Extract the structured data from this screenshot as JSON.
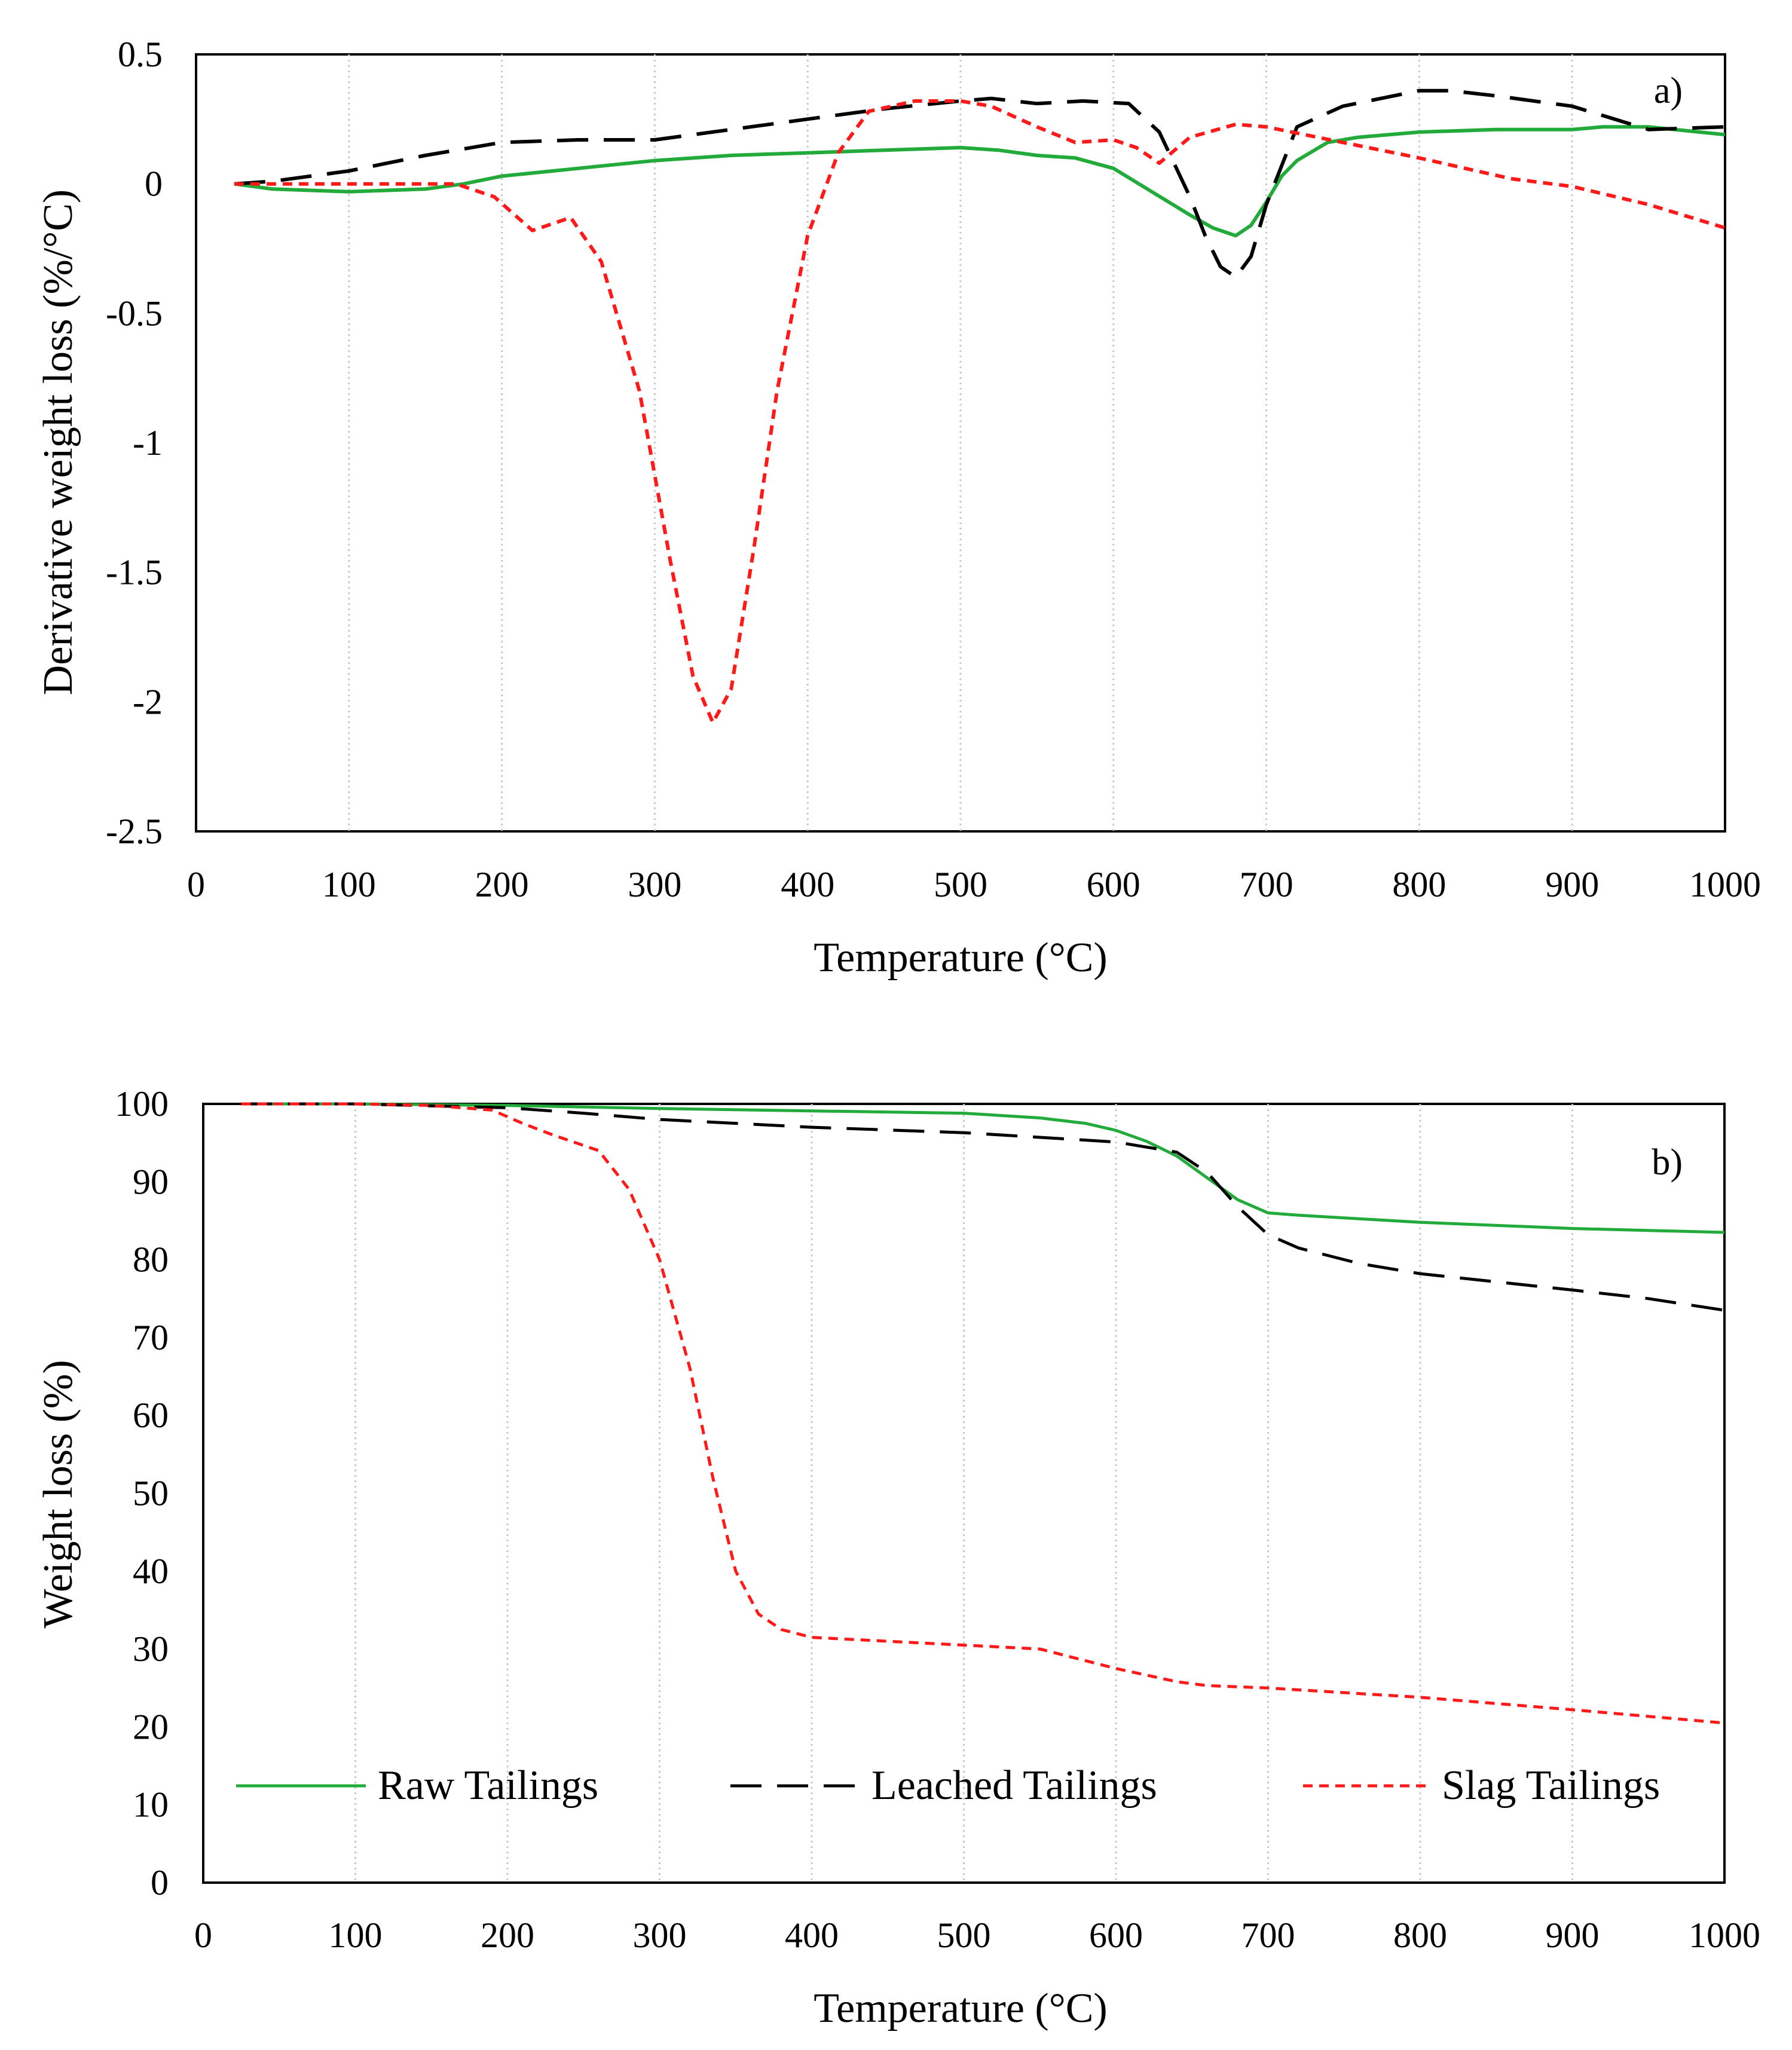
{
  "figure": {
    "legend": [
      {
        "name": "Raw Tailings",
        "color": "#22aa3a",
        "dash": "solid"
      },
      {
        "name": "Leached Tailings",
        "color": "#000000",
        "dash": "longdash"
      },
      {
        "name": "Slag Tailings",
        "color": "#ff1a1a",
        "dash": "shortdash"
      }
    ]
  },
  "chart_data": [
    {
      "type": "line",
      "panel_label": "a)",
      "title": "",
      "xlabel": "Temperature (°C)",
      "ylabel": "Derivative weight loss (%/°C)",
      "xlim": [
        0,
        1000
      ],
      "ylim": [
        -2.5,
        0.5
      ],
      "xticks": [
        0,
        100,
        200,
        300,
        400,
        500,
        600,
        700,
        800,
        900,
        1000
      ],
      "xtick_labels": [
        "0",
        "100",
        "200",
        "300",
        "400",
        "500",
        "600",
        "700",
        "800",
        "900",
        "1000"
      ],
      "yticks": [
        0.5,
        0,
        -0.5,
        -1,
        -1.5,
        -2,
        -2.5
      ],
      "ytick_labels": [
        "0.5",
        "0",
        "-0.5",
        "-1",
        "-1.5",
        "-2",
        "-2.5"
      ],
      "grid": "vertical-dotted",
      "series": [
        {
          "name": "Raw Tailings",
          "x": [
            25,
            50,
            100,
            150,
            175,
            200,
            250,
            300,
            350,
            400,
            450,
            500,
            525,
            550,
            575,
            600,
            625,
            650,
            665,
            680,
            690,
            700,
            710,
            720,
            740,
            760,
            800,
            850,
            900,
            920,
            950,
            1000
          ],
          "y": [
            0,
            -0.02,
            -0.03,
            -0.02,
            0,
            0.03,
            0.06,
            0.09,
            0.11,
            0.12,
            0.13,
            0.14,
            0.13,
            0.11,
            0.1,
            0.06,
            -0.03,
            -0.12,
            -0.17,
            -0.2,
            -0.16,
            -0.07,
            0.03,
            0.09,
            0.16,
            0.18,
            0.2,
            0.21,
            0.21,
            0.22,
            0.22,
            0.19
          ]
        },
        {
          "name": "Leached Tailings",
          "x": [
            25,
            50,
            100,
            150,
            200,
            250,
            300,
            350,
            400,
            450,
            500,
            520,
            550,
            580,
            610,
            630,
            650,
            660,
            670,
            680,
            690,
            700,
            720,
            750,
            800,
            820,
            850,
            900,
            950,
            1000
          ],
          "y": [
            0,
            0.01,
            0.05,
            0.11,
            0.16,
            0.17,
            0.17,
            0.21,
            0.25,
            0.29,
            0.32,
            0.33,
            0.31,
            0.32,
            0.31,
            0.2,
            -0.05,
            -0.2,
            -0.32,
            -0.36,
            -0.28,
            -0.08,
            0.22,
            0.3,
            0.36,
            0.36,
            0.34,
            0.3,
            0.21,
            0.22
          ]
        },
        {
          "name": "Slag Tailings",
          "x": [
            25,
            100,
            170,
            195,
            220,
            245,
            265,
            290,
            310,
            325,
            338,
            350,
            365,
            380,
            400,
            420,
            440,
            470,
            500,
            520,
            550,
            575,
            600,
            615,
            630,
            650,
            680,
            700,
            750,
            800,
            860,
            900,
            950,
            1000
          ],
          "y": [
            0,
            0,
            0,
            -0.05,
            -0.18,
            -0.13,
            -0.3,
            -0.8,
            -1.45,
            -1.9,
            -2.08,
            -1.95,
            -1.4,
            -0.8,
            -0.2,
            0.12,
            0.28,
            0.32,
            0.32,
            0.3,
            0.22,
            0.16,
            0.17,
            0.14,
            0.08,
            0.18,
            0.23,
            0.22,
            0.16,
            0.1,
            0.02,
            -0.01,
            -0.08,
            -0.17
          ]
        }
      ]
    },
    {
      "type": "line",
      "panel_label": "b)",
      "title": "",
      "xlabel": "Temperature (°C)",
      "ylabel": "Weight loss (%)",
      "xlim": [
        0,
        1000
      ],
      "ylim": [
        0,
        100
      ],
      "xticks": [
        0,
        100,
        200,
        300,
        400,
        500,
        600,
        700,
        800,
        900,
        1000
      ],
      "xtick_labels": [
        "0",
        "100",
        "200",
        "300",
        "400",
        "500",
        "600",
        "700",
        "800",
        "900",
        "1000"
      ],
      "yticks": [
        100,
        90,
        80,
        70,
        60,
        50,
        40,
        30,
        20,
        10,
        0
      ],
      "ytick_labels": [
        "100",
        "90",
        "80",
        "70",
        "60",
        "50",
        "40",
        "30",
        "20",
        "10",
        "0"
      ],
      "grid": "vertical-dotted",
      "legend_position": "bottom",
      "series": [
        {
          "name": "Raw Tailings",
          "x": [
            25,
            100,
            200,
            300,
            400,
            500,
            550,
            580,
            600,
            620,
            640,
            660,
            680,
            700,
            720,
            800,
            900,
            1000
          ],
          "y": [
            100,
            100,
            99.8,
            99.4,
            99.1,
            98.8,
            98.2,
            97.5,
            96.6,
            95.2,
            93.3,
            90.5,
            87.7,
            86,
            85.7,
            84.8,
            84,
            83.5
          ]
        },
        {
          "name": "Leached Tailings",
          "x": [
            25,
            100,
            200,
            250,
            300,
            400,
            500,
            600,
            640,
            660,
            680,
            700,
            720,
            760,
            800,
            900,
            950,
            1000
          ],
          "y": [
            100,
            100,
            99.5,
            98.8,
            98,
            97,
            96.3,
            95.1,
            93.8,
            91.2,
            86.8,
            83.2,
            81.5,
            79.5,
            78.2,
            76.1,
            75,
            73.5
          ]
        },
        {
          "name": "Slag Tailings",
          "x": [
            25,
            100,
            150,
            190,
            210,
            230,
            260,
            280,
            300,
            320,
            335,
            350,
            365,
            380,
            400,
            450,
            500,
            550,
            600,
            640,
            660,
            700,
            800,
            900,
            1000
          ],
          "y": [
            100,
            100,
            99.8,
            99.2,
            97.5,
            96,
            94,
            89,
            80,
            66,
            52,
            40,
            34.5,
            32.5,
            31.5,
            31,
            30.5,
            30,
            27.5,
            25.8,
            25.3,
            25,
            23.8,
            22.2,
            20.5
          ]
        }
      ]
    }
  ]
}
